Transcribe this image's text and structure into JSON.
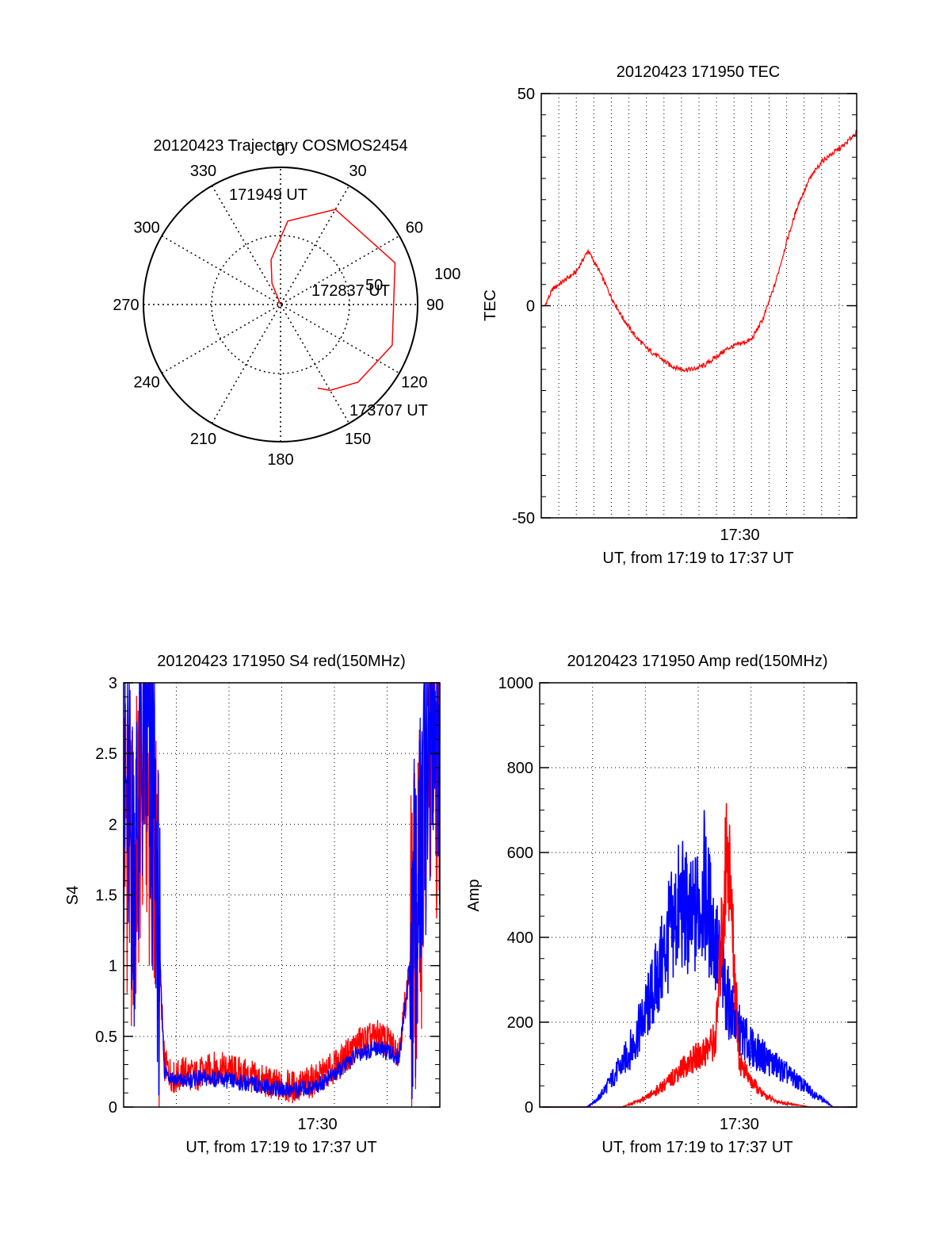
{
  "colors": {
    "red": "#ff0000",
    "blue": "#0000ff",
    "axis": "#000000"
  },
  "chart_data": [
    {
      "type": "polar",
      "title": "20120423 Trajectory COSMOS2454",
      "azimuth_labels": [
        "0",
        "30",
        "60",
        "90",
        "120",
        "150",
        "180",
        "210",
        "240",
        "270",
        "300",
        "330"
      ],
      "ring_labels": [
        "50",
        "100"
      ],
      "trajectory": {
        "color": "#ff0000",
        "start_label": "171949 UT",
        "mid_label": "172837 UT",
        "end_label": "173707 UT",
        "points": [
          [
            -28,
            90
          ],
          [
            -22,
            75
          ],
          [
            -12,
            60
          ],
          [
            5,
            35
          ],
          [
            30,
            18
          ],
          [
            70,
            10
          ],
          [
            110,
            12
          ],
          [
            135,
            18
          ],
          [
            150,
            25
          ],
          [
            156,
            30
          ]
        ]
      }
    },
    {
      "type": "line",
      "title": "20120423 171950 TEC",
      "ylabel": "TEC",
      "xlabel": "UT, from 17:19 to 17:37 UT",
      "xlim": [
        17.33,
        17.6
      ],
      "ylim": [
        -50,
        50
      ],
      "yticks": [
        "-50",
        "0",
        "50"
      ],
      "xticks": [
        {
          "value": 17.5,
          "label": "17:30"
        }
      ],
      "series": [
        {
          "color": "#ff0000",
          "x": [
            17.333,
            17.34,
            17.35,
            17.36,
            17.37,
            17.38,
            17.39,
            17.4,
            17.41,
            17.42,
            17.43,
            17.44,
            17.45,
            17.46,
            17.47,
            17.48,
            17.49,
            17.5,
            17.51,
            17.52,
            17.53,
            17.54,
            17.55,
            17.56,
            17.57,
            17.58,
            17.59,
            17.6
          ],
          "y": [
            0,
            4,
            6,
            8,
            13,
            8,
            2,
            -3,
            -7,
            -10,
            -12,
            -14,
            -15,
            -15,
            -14,
            -12,
            -10,
            -9,
            -8,
            -3,
            5,
            15,
            24,
            30,
            34,
            36,
            38,
            41
          ]
        }
      ]
    },
    {
      "type": "line",
      "title": "20120423 171950 S4 red(150MHz)",
      "ylabel": "S4",
      "xlabel": "UT, from 17:19 to 17:37 UT",
      "xlim": [
        17.31,
        17.62
      ],
      "ylim": [
        0,
        3
      ],
      "yticks": [
        "0",
        "0.5",
        "1",
        "1.5",
        "2",
        "2.5",
        "3"
      ],
      "xticks": [
        {
          "value": 17.5,
          "label": "17:30"
        }
      ],
      "series": [
        {
          "color": "#ff0000",
          "x": [
            17.31,
            17.32,
            17.33,
            17.34,
            17.35,
            17.36,
            17.37,
            17.38,
            17.4,
            17.42,
            17.44,
            17.46,
            17.48,
            17.5,
            17.52,
            17.54,
            17.56,
            17.58,
            17.6,
            17.61,
            17.62
          ],
          "y": [
            2.2,
            1.5,
            2.6,
            1.8,
            0.3,
            0.2,
            0.25,
            0.22,
            0.28,
            0.25,
            0.2,
            0.15,
            0.14,
            0.2,
            0.3,
            0.45,
            0.5,
            0.4,
            1.5,
            2.7,
            2.4
          ]
        },
        {
          "color": "#0000ff",
          "x": [
            17.31,
            17.32,
            17.33,
            17.34,
            17.35,
            17.36,
            17.37,
            17.38,
            17.4,
            17.42,
            17.44,
            17.46,
            17.48,
            17.5,
            17.52,
            17.54,
            17.56,
            17.58,
            17.6,
            17.61,
            17.62
          ],
          "y": [
            2.3,
            1.7,
            2.7,
            2.0,
            0.25,
            0.2,
            0.18,
            0.2,
            0.2,
            0.18,
            0.16,
            0.13,
            0.12,
            0.15,
            0.25,
            0.38,
            0.42,
            0.35,
            1.6,
            2.8,
            2.6
          ]
        }
      ]
    },
    {
      "type": "line",
      "title": "20120423 171950 Amp red(150MHz)",
      "ylabel": "Amp",
      "xlabel": "UT, from 17:19 to 17:37 UT",
      "xlim": [
        17.33,
        17.6
      ],
      "ylim": [
        0,
        1000
      ],
      "yticks": [
        "0",
        "200",
        "400",
        "600",
        "800",
        "1000"
      ],
      "xticks": [
        {
          "value": 17.5,
          "label": "17:30"
        }
      ],
      "series": [
        {
          "color": "#0000ff",
          "x": [
            17.333,
            17.37,
            17.38,
            17.39,
            17.4,
            17.41,
            17.42,
            17.43,
            17.44,
            17.45,
            17.46,
            17.47,
            17.48,
            17.49,
            17.5,
            17.51,
            17.52,
            17.53,
            17.54,
            17.55,
            17.56,
            17.57,
            17.58,
            17.6
          ],
          "y": [
            0,
            0,
            20,
            60,
            100,
            150,
            220,
            300,
            400,
            480,
            430,
            520,
            380,
            250,
            180,
            140,
            120,
            100,
            80,
            60,
            40,
            20,
            0,
            0
          ]
        },
        {
          "color": "#ff0000",
          "x": [
            17.333,
            17.4,
            17.41,
            17.42,
            17.43,
            17.44,
            17.45,
            17.46,
            17.47,
            17.48,
            17.49,
            17.5,
            17.51,
            17.52,
            17.53,
            17.54,
            17.55,
            17.56,
            17.6
          ],
          "y": [
            0,
            0,
            10,
            20,
            40,
            60,
            90,
            110,
            130,
            160,
            640,
            110,
            60,
            30,
            15,
            8,
            5,
            0,
            0
          ]
        }
      ]
    }
  ]
}
